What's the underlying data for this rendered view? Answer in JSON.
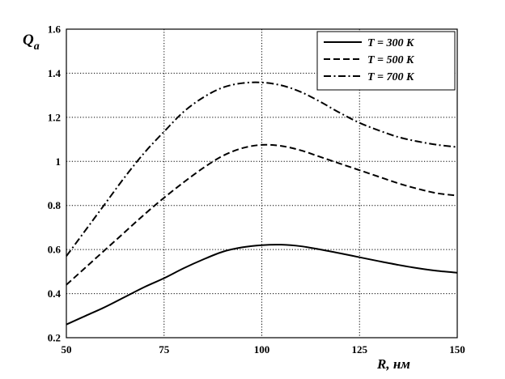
{
  "chart_data": {
    "type": "line",
    "title": "",
    "xlabel": "R, нм",
    "ylabel_main": "Q",
    "ylabel_sub": "a",
    "xlim": [
      50,
      150
    ],
    "ylim": [
      0.2,
      1.6
    ],
    "xticks": [
      50,
      75,
      100,
      125,
      150
    ],
    "xtick_labels": [
      "50",
      "75",
      "100",
      "125",
      "150"
    ],
    "yticks": [
      0.2,
      0.4,
      0.6,
      0.8,
      1.0,
      1.2,
      1.4,
      1.6
    ],
    "ytick_labels": [
      "0.2",
      "0.4",
      "0.6",
      "0.8",
      "1",
      "1.2",
      "1.4",
      "1.6"
    ],
    "grid": true,
    "legend_position": "top-right",
    "series": [
      {
        "name": "T = 300 K",
        "dash": "solid",
        "x": [
          50,
          55,
          60,
          65,
          70,
          75,
          80,
          85,
          90,
          95,
          100,
          105,
          110,
          115,
          120,
          125,
          130,
          135,
          140,
          145,
          150
        ],
        "y": [
          0.26,
          0.3,
          0.34,
          0.385,
          0.43,
          0.47,
          0.515,
          0.555,
          0.59,
          0.61,
          0.62,
          0.622,
          0.615,
          0.6,
          0.583,
          0.565,
          0.547,
          0.53,
          0.515,
          0.503,
          0.495
        ]
      },
      {
        "name": "T = 500 K",
        "dash": "dashed",
        "x": [
          50,
          55,
          60,
          65,
          70,
          75,
          80,
          85,
          90,
          95,
          100,
          105,
          110,
          115,
          120,
          125,
          130,
          135,
          140,
          145,
          150
        ],
        "y": [
          0.44,
          0.52,
          0.6,
          0.68,
          0.76,
          0.835,
          0.905,
          0.97,
          1.025,
          1.06,
          1.075,
          1.07,
          1.05,
          1.02,
          0.99,
          0.96,
          0.93,
          0.9,
          0.875,
          0.855,
          0.845
        ]
      },
      {
        "name": "T = 700 K",
        "dash": "dashdot",
        "x": [
          50,
          55,
          60,
          65,
          70,
          75,
          80,
          85,
          90,
          95,
          100,
          105,
          110,
          115,
          120,
          125,
          130,
          135,
          140,
          145,
          150
        ],
        "y": [
          0.57,
          0.69,
          0.81,
          0.93,
          1.04,
          1.135,
          1.225,
          1.29,
          1.335,
          1.355,
          1.358,
          1.345,
          1.315,
          1.27,
          1.22,
          1.175,
          1.14,
          1.11,
          1.09,
          1.075,
          1.065
        ]
      }
    ]
  }
}
